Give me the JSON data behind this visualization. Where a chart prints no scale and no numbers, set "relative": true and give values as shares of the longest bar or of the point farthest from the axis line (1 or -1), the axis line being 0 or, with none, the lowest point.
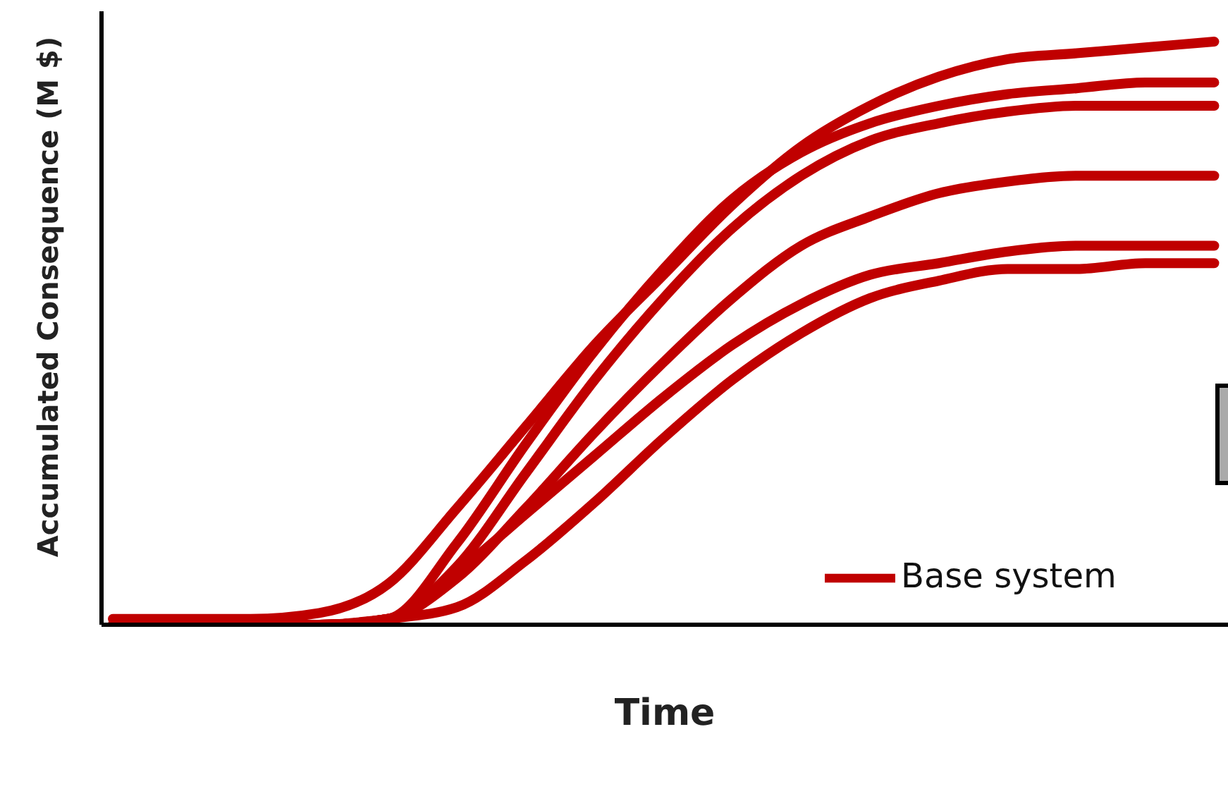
{
  "chart_data": {
    "type": "line",
    "relative": true,
    "xlabel": "Time",
    "ylabel": "Accumulated Consequence (M $)",
    "legend": "bottom right",
    "marker": "none",
    "line_style": "solid",
    "grid": false,
    "categories": [
      null,
      null,
      null,
      null,
      null,
      null,
      null,
      null,
      null,
      null,
      null,
      null,
      null,
      null,
      null,
      null,
      null
    ],
    "series": [
      {
        "name": "Base system",
        "color": "#c00000",
        "values": [
          0.01,
          0.01,
          0.01,
          0.02,
          0.07,
          0.2,
          0.34,
          0.48,
          0.6,
          0.72,
          0.82,
          0.89,
          0.94,
          0.97,
          0.98,
          0.99,
          1.0
        ]
      },
      {
        "color": "#c00000",
        "values": [
          0,
          0,
          0,
          0,
          0.01,
          0.14,
          0.31,
          0.47,
          0.61,
          0.73,
          0.81,
          0.86,
          0.89,
          0.91,
          0.92,
          0.93,
          0.93
        ]
      },
      {
        "color": "#c00000",
        "values": [
          0,
          0,
          0,
          0,
          0.01,
          0.1,
          0.26,
          0.42,
          0.56,
          0.68,
          0.77,
          0.83,
          0.86,
          0.88,
          0.89,
          0.89,
          0.89
        ]
      },
      {
        "color": "#c00000",
        "values": [
          0,
          0,
          0,
          0,
          0.01,
          0.08,
          0.2,
          0.33,
          0.45,
          0.56,
          0.65,
          0.7,
          0.74,
          0.76,
          0.77,
          0.77,
          0.77
        ]
      },
      {
        "color": "#c00000",
        "values": [
          0,
          0,
          0,
          0,
          0.01,
          0.09,
          0.19,
          0.29,
          0.39,
          0.48,
          0.55,
          0.6,
          0.62,
          0.64,
          0.65,
          0.65,
          0.65
        ]
      },
      {
        "color": "#c00000",
        "values": [
          0,
          0,
          0,
          0,
          0.01,
          0.03,
          0.11,
          0.21,
          0.32,
          0.42,
          0.5,
          0.56,
          0.59,
          0.61,
          0.61,
          0.62,
          0.62
        ]
      }
    ]
  }
}
